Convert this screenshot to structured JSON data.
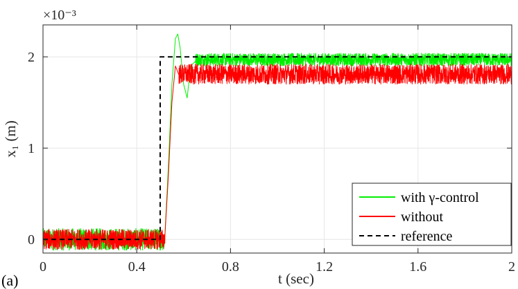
{
  "chart_data": {
    "type": "line",
    "panel_label": "(a)",
    "xlabel": "t (sec)",
    "ylabel": "x₁ (m)",
    "y_exponent_label": "×10⁻³",
    "xlim": [
      0,
      2
    ],
    "ylim": [
      -0.00015,
      0.00235
    ],
    "x_ticks": [
      0,
      0.4,
      0.8,
      1.2,
      1.6,
      2
    ],
    "x_tick_labels": [
      "0",
      "0.4",
      "0.8",
      "1.2",
      "1.6",
      "2"
    ],
    "y_ticks": [
      0,
      0.001,
      0.002
    ],
    "y_tick_labels": [
      "0",
      "1",
      "2"
    ],
    "grid": true,
    "legend_position": "bottom-right",
    "series": [
      {
        "name": "with γ-control",
        "color": "#00ee00",
        "style": "solid",
        "segments": [
          {
            "t_from": 0,
            "t_to": 0.52,
            "mean": 0.0,
            "amplitude": 0.00012
          },
          {
            "t_from": 0.52,
            "t_to": 0.65,
            "points": [
              [
                0.52,
                5e-05
              ],
              [
                0.535,
                0.0008
              ],
              [
                0.55,
                0.0017
              ],
              [
                0.565,
                0.0022
              ],
              [
                0.575,
                0.00225
              ],
              [
                0.585,
                0.0021
              ],
              [
                0.6,
                0.0017
              ],
              [
                0.615,
                0.00155
              ],
              [
                0.63,
                0.0019
              ],
              [
                0.65,
                0.00195
              ]
            ]
          },
          {
            "t_from": 0.65,
            "t_to": 2.0,
            "mean": 0.00197,
            "amplitude": 7e-05
          }
        ]
      },
      {
        "name": "without",
        "color": "#ff0000",
        "style": "solid",
        "segments": [
          {
            "t_from": 0,
            "t_to": 0.52,
            "mean": 0.0,
            "amplitude": 0.00011
          },
          {
            "t_from": 0.52,
            "t_to": 0.58,
            "points": [
              [
                0.52,
                3e-05
              ],
              [
                0.535,
                0.0007
              ],
              [
                0.55,
                0.0015
              ],
              [
                0.565,
                0.0019
              ],
              [
                0.58,
                0.0018
              ]
            ]
          },
          {
            "t_from": 0.58,
            "t_to": 2.0,
            "mean": 0.00181,
            "amplitude": 0.00011
          }
        ]
      },
      {
        "name": "reference",
        "color": "#000000",
        "style": "dashed",
        "points": [
          [
            0,
            0
          ],
          [
            0.5,
            0
          ],
          [
            0.5,
            0.002
          ],
          [
            2.0,
            0.002
          ]
        ]
      }
    ]
  }
}
